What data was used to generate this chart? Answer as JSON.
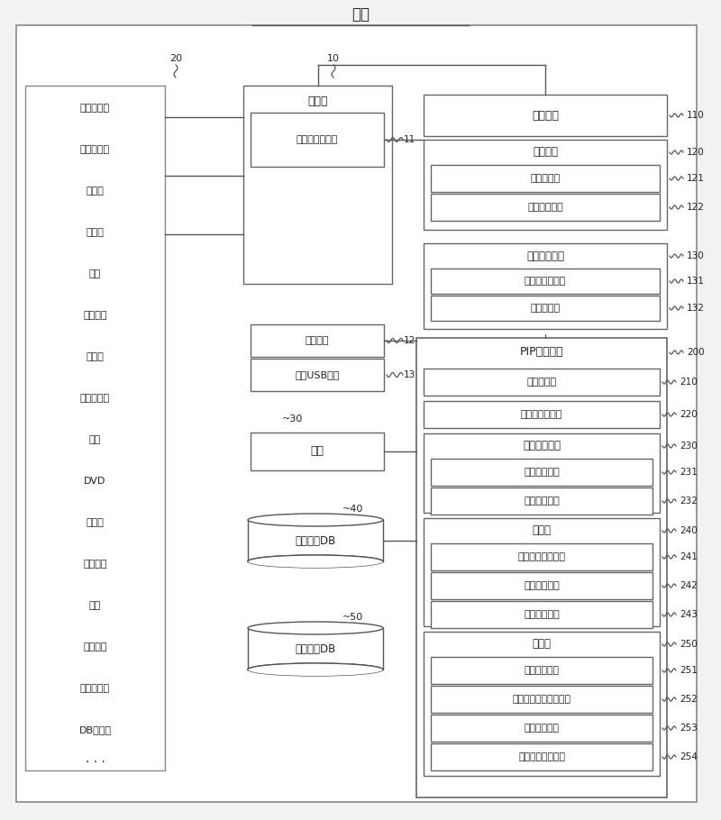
{
  "title": "系统",
  "bg_color": "#f5f5f0",
  "label_20": "20",
  "label_10": "10",
  "peripheral_items": [
    "外围设备组",
    "光束投射器",
    "显示器",
    "提示器",
    "话筒",
    "蓝牙耳机",
    "互联网",
    "笔记本电脑",
    "桌面",
    "DVD",
    "摄像头",
    "电子窗帘",
    "屏幕",
    "数字门锁",
    "火灾传感器",
    "DB服务器"
  ],
  "main_ctrl_label": "主控器",
  "node_11": "整合信号处理部",
  "node_11_id": "11",
  "node_12": "综合线缆",
  "node_12_id": "12",
  "node_13": "综合USB端口",
  "node_13_id": "13",
  "node_30": "讲桌",
  "node_30_id": "30",
  "node_40": "教学内容DB",
  "node_40_id": "40",
  "node_50": "讲课资料DB",
  "node_50_id": "50",
  "module_110": "互连模块",
  "module_110_id": "110",
  "module_120_label": "设置模块",
  "module_120_id": "120",
  "module_121": "条件设置部",
  "module_121_id": "121",
  "module_122": "默认值设置部",
  "module_122_id": "122",
  "module_130_label": "自行诊断模块",
  "module_130_id": "130",
  "module_131": "诊断信号发送部",
  "module_131_id": "131",
  "module_132": "状态显示部",
  "module_132_id": "132",
  "module_200_label": "PIP显示模块",
  "module_200_id": "200",
  "module_210": "标签设置部",
  "module_210_id": "210",
  "module_220": "标签顺序指定部",
  "module_220_id": "220",
  "module_230_label": "搜索词输入部",
  "module_230_id": "230",
  "module_231": "手动输入方案",
  "module_231_id": "231",
  "module_232": "自动输入方案",
  "module_232_id": "232",
  "module_240_label": "匹配部",
  "module_240_id": "240",
  "module_241": "匹配顺序决定方案",
  "module_241_id": "241",
  "module_242": "任意决定方案",
  "module_242_id": "242",
  "module_243": "任意决定方案",
  "module_243_id": "243",
  "module_250_label": "显示部",
  "module_250_id": "250",
  "module_251": "主从决定方案",
  "module_251_id": "251",
  "module_252": "标签顺序互连决定方案",
  "module_252_id": "252",
  "module_253": "混合显示方案",
  "module_253_id": "253",
  "module_254": "显示状态决定方案",
  "module_254_id": "254"
}
